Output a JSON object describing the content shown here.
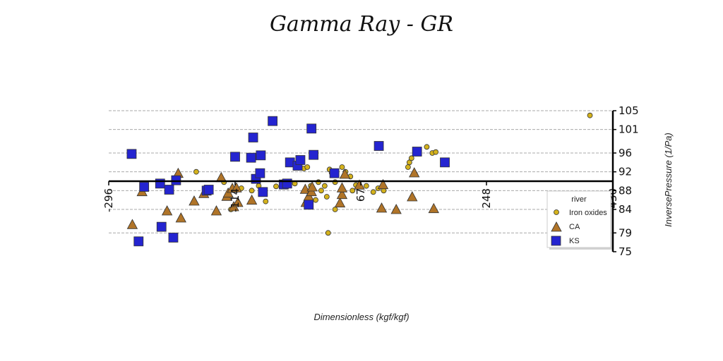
{
  "chart_data": {
    "type": "scatter",
    "title": "Gamma Ray - GR",
    "xlabel": "Dimensionless (kgf/kgf)",
    "ylabel": "InversePressure (1/Pa)",
    "xlim": [
      -296,
      430
    ],
    "ylim": [
      75,
      105
    ],
    "x_ticks": [
      -296,
      -114,
      67,
      248,
      430
    ],
    "y_ticks": [
      75,
      79,
      84,
      88,
      92,
      96,
      101,
      105
    ],
    "x_axis_at_y": 90,
    "grid": "horizontal dashed at y ticks",
    "legend": {
      "title": "river",
      "placement": "right"
    },
    "series": [
      {
        "name": "Iron oxides",
        "marker": "circle",
        "color": "#d4b21c",
        "points": [
          [
            -170,
            92
          ],
          [
            -130,
            89.8
          ],
          [
            -120,
            84
          ],
          [
            -105,
            88.5
          ],
          [
            -90,
            88
          ],
          [
            -80,
            89
          ],
          [
            -70,
            85.7
          ],
          [
            -55,
            88.9
          ],
          [
            -45,
            89.8
          ],
          [
            -28,
            89.5
          ],
          [
            -15,
            92.7
          ],
          [
            -10,
            93
          ],
          [
            -5,
            89
          ],
          [
            2,
            86
          ],
          [
            6,
            89.8
          ],
          [
            10,
            88
          ],
          [
            15,
            89
          ],
          [
            18,
            86.7
          ],
          [
            20,
            79
          ],
          [
            22,
            92.5
          ],
          [
            25,
            91.8
          ],
          [
            30,
            84
          ],
          [
            30,
            89.8
          ],
          [
            40,
            93
          ],
          [
            45,
            92
          ],
          [
            52,
            91
          ],
          [
            55,
            88
          ],
          [
            60,
            89.2
          ],
          [
            75,
            89
          ],
          [
            85,
            87.7
          ],
          [
            92,
            88.5
          ],
          [
            100,
            88
          ],
          [
            135,
            93
          ],
          [
            137,
            94
          ],
          [
            140,
            94.9
          ],
          [
            145,
            91.6
          ],
          [
            162,
            97.3
          ],
          [
            170,
            96
          ],
          [
            175,
            96.2
          ],
          [
            397,
            104
          ]
        ]
      },
      {
        "name": "CA",
        "marker": "triangle",
        "color": "#b07428",
        "points": [
          [
            -262,
            80.8
          ],
          [
            -248,
            87.8
          ],
          [
            -212,
            83.7
          ],
          [
            -196,
            91.7
          ],
          [
            -192,
            82.2
          ],
          [
            -173,
            85.8
          ],
          [
            -159,
            87.4
          ],
          [
            -141,
            83.7
          ],
          [
            -134,
            90.8
          ],
          [
            -126,
            86.8
          ],
          [
            -124,
            87.5
          ],
          [
            -118,
            88.5
          ],
          [
            -116,
            84.6
          ],
          [
            -112,
            88.6
          ],
          [
            -110,
            85.5
          ],
          [
            -90,
            86
          ],
          [
            -13,
            88.3
          ],
          [
            -12,
            85.5
          ],
          [
            -8,
            86.8
          ],
          [
            -4,
            87.8
          ],
          [
            -3,
            88.8
          ],
          [
            37,
            85.4
          ],
          [
            40,
            87.2
          ],
          [
            40,
            88.6
          ],
          [
            44,
            91.5
          ],
          [
            65,
            89.2
          ],
          [
            97,
            84.3
          ],
          [
            99,
            89.3
          ],
          [
            118,
            84
          ],
          [
            141,
            86.7
          ],
          [
            144,
            91.8
          ],
          [
            172,
            84.2
          ]
        ]
      },
      {
        "name": "KS",
        "marker": "square",
        "color": "#2424d0",
        "points": [
          [
            -263,
            95.8
          ],
          [
            -253,
            77.2
          ],
          [
            -245,
            88.8
          ],
          [
            -222,
            89.5
          ],
          [
            -220,
            80.3
          ],
          [
            -209,
            88.2
          ],
          [
            -203,
            78
          ],
          [
            -199,
            90.2
          ],
          [
            -155,
            88
          ],
          [
            -152,
            88.2
          ],
          [
            -114,
            95.2
          ],
          [
            -91,
            95
          ],
          [
            -88,
            99.3
          ],
          [
            -84,
            90.5
          ],
          [
            -78,
            91.7
          ],
          [
            -77,
            95.5
          ],
          [
            -74,
            87.7
          ],
          [
            -60,
            102.8
          ],
          [
            -44,
            89.3
          ],
          [
            -39,
            89.5
          ],
          [
            -35,
            94
          ],
          [
            -24,
            93.3
          ],
          [
            -20,
            94.5
          ],
          [
            -8,
            85
          ],
          [
            -4,
            101.2
          ],
          [
            -1,
            95.6
          ],
          [
            29,
            91.7
          ],
          [
            93,
            97.5
          ],
          [
            148,
            96.3
          ],
          [
            188,
            94
          ]
        ]
      }
    ]
  }
}
